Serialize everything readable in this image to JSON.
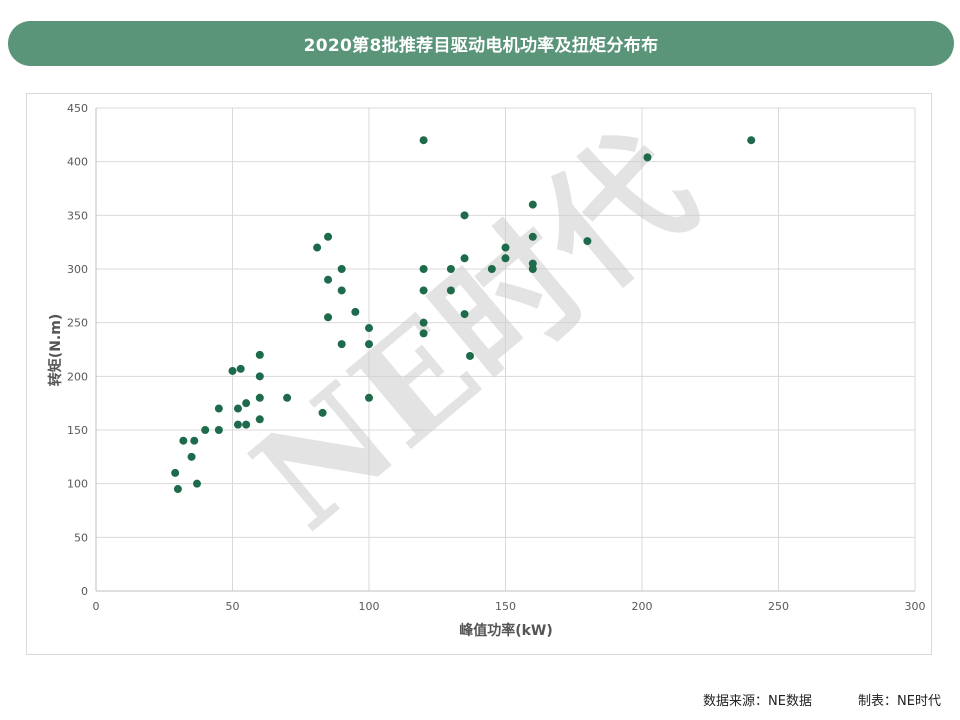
{
  "header": {
    "title": "2020第8批推荐目驱动电机功率及扭矩分布布"
  },
  "chart_data": {
    "type": "scatter",
    "title": "2020第8批推荐目驱动电机功率及扭矩分布布",
    "xlabel": "峰值功率(kW)",
    "ylabel": "转矩(N.m)",
    "xlim": [
      0,
      300
    ],
    "ylim": [
      0,
      450
    ],
    "x_ticks": [
      "0",
      "50",
      "100",
      "150",
      "200",
      "250",
      "300"
    ],
    "y_ticks": [
      "0",
      "50",
      "100",
      "150",
      "200",
      "250",
      "300",
      "350",
      "400",
      "450"
    ],
    "grid": true,
    "marker_color": "#1e6b4c",
    "points": [
      [
        29,
        110
      ],
      [
        30,
        95
      ],
      [
        32,
        140
      ],
      [
        35,
        125
      ],
      [
        36,
        140
      ],
      [
        37,
        100
      ],
      [
        40,
        150
      ],
      [
        45,
        170
      ],
      [
        45,
        150
      ],
      [
        50,
        205
      ],
      [
        52,
        170
      ],
      [
        52,
        155
      ],
      [
        53,
        207
      ],
      [
        55,
        175
      ],
      [
        55,
        155
      ],
      [
        60,
        220
      ],
      [
        60,
        200
      ],
      [
        60,
        180
      ],
      [
        60,
        160
      ],
      [
        70,
        180
      ],
      [
        81,
        320
      ],
      [
        83,
        166
      ],
      [
        85,
        330
      ],
      [
        85,
        290
      ],
      [
        85,
        255
      ],
      [
        90,
        300
      ],
      [
        90,
        280
      ],
      [
        90,
        230
      ],
      [
        95,
        260
      ],
      [
        100,
        245
      ],
      [
        100,
        230
      ],
      [
        100,
        180
      ],
      [
        120,
        420
      ],
      [
        120,
        300
      ],
      [
        120,
        280
      ],
      [
        120,
        250
      ],
      [
        120,
        240
      ],
      [
        130,
        300
      ],
      [
        130,
        280
      ],
      [
        135,
        350
      ],
      [
        135,
        310
      ],
      [
        135,
        258
      ],
      [
        137,
        219
      ],
      [
        145,
        300
      ],
      [
        150,
        320
      ],
      [
        150,
        310
      ],
      [
        160,
        360
      ],
      [
        160,
        330
      ],
      [
        160,
        305
      ],
      [
        160,
        300
      ],
      [
        180,
        326
      ],
      [
        202,
        404
      ],
      [
        240,
        420
      ]
    ]
  },
  "watermark": {
    "text": "NE时代"
  },
  "footer": {
    "source": "数据来源：NE数据",
    "maker": "制表：NE时代"
  }
}
